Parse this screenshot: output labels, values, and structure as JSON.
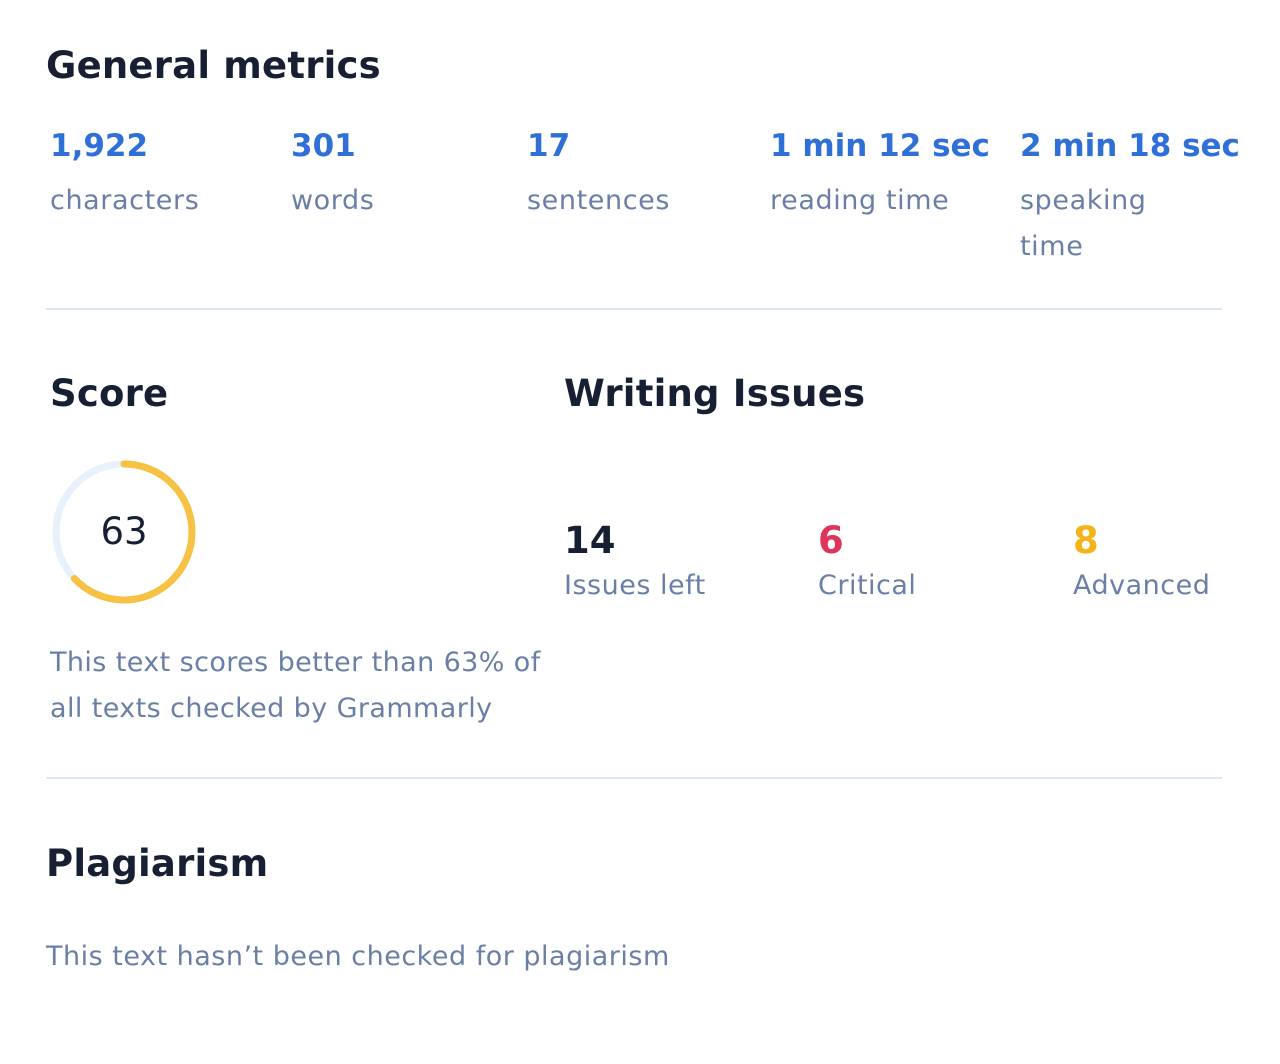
{
  "general_metrics": {
    "title": "General metrics",
    "items": [
      {
        "value": "1,922",
        "label": "characters"
      },
      {
        "value": "301",
        "label": "words"
      },
      {
        "value": "17",
        "label": "sentences"
      },
      {
        "value": "1 min 12 sec",
        "label": "reading time"
      },
      {
        "value": "2 min 18 sec",
        "label": "speaking time"
      }
    ]
  },
  "score": {
    "title": "Score",
    "value": "63",
    "fraction": 0.63,
    "description": "This text scores better than 63% of all texts checked by Grammarly"
  },
  "writing_issues": {
    "title": "Writing Issues",
    "items": [
      {
        "value": "14",
        "label": "Issues left",
        "color": "#172033"
      },
      {
        "value": "6",
        "label": "Critical",
        "color": "#e0355a"
      },
      {
        "value": "8",
        "label": "Advanced",
        "color": "#f2b417"
      }
    ]
  },
  "plagiarism": {
    "title": "Plagiarism",
    "description": "This text hasn’t been checked for plagiarism"
  },
  "colors": {
    "accent": "#2f6fd8",
    "score_ring": "#f7c243",
    "score_track": "#e6f1fb",
    "muted_text": "#6b7fa6",
    "heading_text": "#172033"
  }
}
